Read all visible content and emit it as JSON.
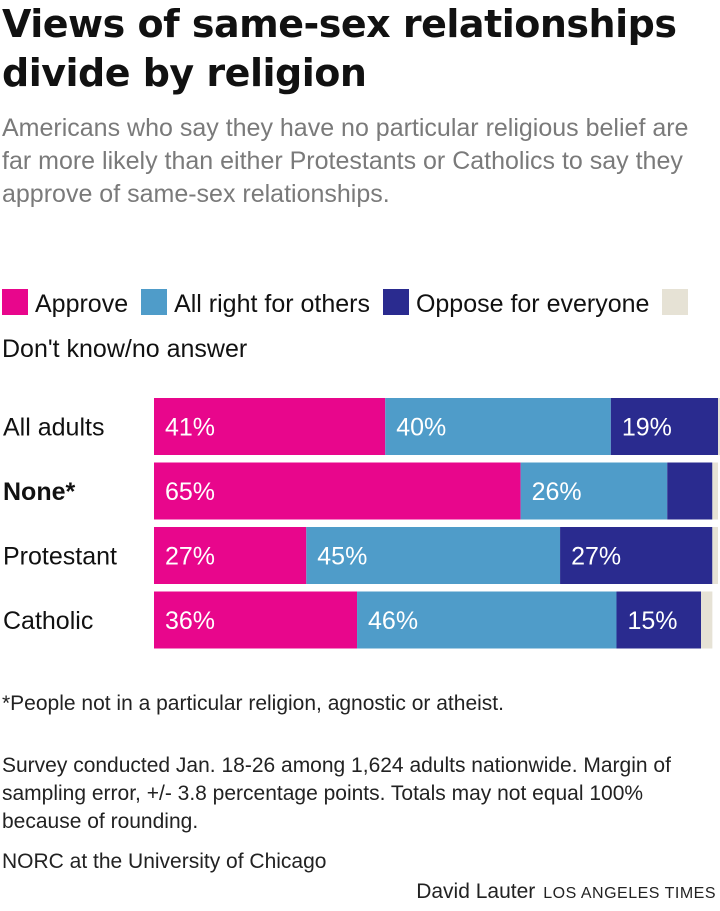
{
  "chart_data": {
    "type": "bar",
    "orientation": "horizontal",
    "stacked": true,
    "title": "Views of same-sex relationships divide by religion",
    "subtitle": "Americans who say they have no particular religious belief are far more likely than either Protestants or Catholics to say they approve of same-sex relationships.",
    "categories": [
      "All adults",
      "None*",
      "Protestant",
      "Catholic"
    ],
    "bold_categories": [
      "None*"
    ],
    "xlim": [
      0,
      100
    ],
    "series": [
      {
        "name": "Approve",
        "color": "#e8068c",
        "values": [
          41,
          65,
          27,
          36
        ],
        "labels": [
          "41%",
          "65%",
          "27%",
          "36%"
        ]
      },
      {
        "name": "All right for others",
        "color": "#4f9cc9",
        "values": [
          40,
          26,
          45,
          46
        ],
        "labels": [
          "40%",
          "26%",
          "45%",
          "46%"
        ]
      },
      {
        "name": "Oppose for everyone",
        "color": "#2a2b8f",
        "values": [
          19,
          8,
          27,
          15
        ],
        "labels": [
          "19%",
          "",
          "27%",
          "15%"
        ]
      },
      {
        "name": "Don't know/no answer",
        "color": "#e6e2d5",
        "values": [
          1,
          1,
          1,
          2
        ],
        "labels": [
          "",
          "",
          "",
          ""
        ]
      }
    ]
  },
  "footnote": "*People not in a particular religion, agnostic or atheist.",
  "survey_note": "Survey conducted Jan. 18-26 among 1,624 adults nationwide. Margin of sampling error, +/- 3.8 percentage points. Totals may not equal 100% because of rounding.",
  "source": "NORC at the University of Chicago",
  "credit": {
    "author": "David Lauter",
    "publication": "LOS ANGELES TIMES"
  }
}
